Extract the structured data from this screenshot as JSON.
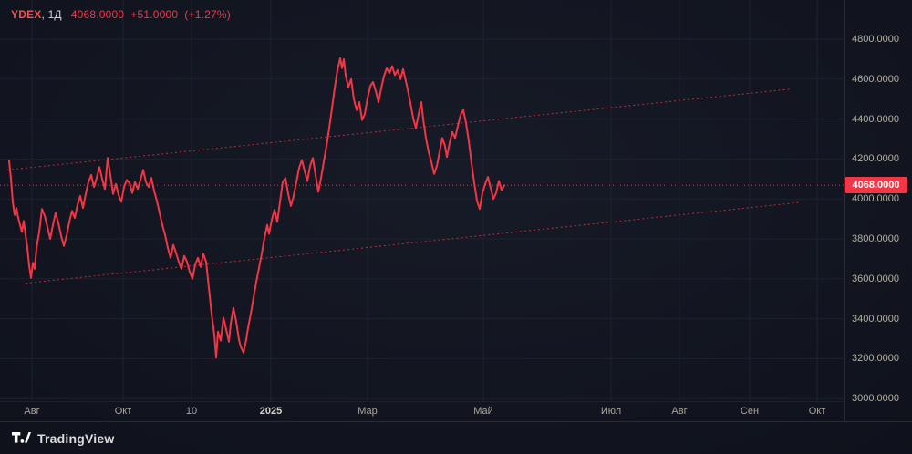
{
  "header": {
    "symbol": "YDEX",
    "separator": ", ",
    "interval": "1Д",
    "price": "4068.0000",
    "change": "+51.0000",
    "change_pct": "(+1.27%)"
  },
  "price_axis": {
    "last_price_label": "4068.0000"
  },
  "footer": {
    "brand": "TradingView"
  },
  "colors": {
    "line": "#f23645",
    "label_bg": "#f23645",
    "grid": "#1d2230",
    "axis_text": "#b3afa4"
  },
  "chart_data": {
    "type": "line",
    "title": "YDEX, 1Д",
    "xlabel": "",
    "ylabel": "",
    "ylim": [
      3000,
      4800
    ],
    "grid": true,
    "grid_color": "#1d2230",
    "trend_color": "#f23645",
    "price_line": 4068,
    "last_price": 4068,
    "y_ticks": [
      "4800.0000",
      "4600.0000",
      "4400.0000",
      "4200.0000",
      "4000.0000",
      "3800.0000",
      "3600.0000",
      "3400.0000",
      "3200.0000",
      "3000.0000"
    ],
    "x_ticks": [
      {
        "label": "Авг",
        "x": 35,
        "year": false
      },
      {
        "label": "Окт",
        "x": 135,
        "year": false
      },
      {
        "label": "10",
        "x": 210,
        "year": false
      },
      {
        "label": "2025",
        "x": 297,
        "year": true
      },
      {
        "label": "Мар",
        "x": 403,
        "year": false
      },
      {
        "label": "Май",
        "x": 530,
        "year": false
      },
      {
        "label": "Июл",
        "x": 670,
        "year": false
      },
      {
        "label": "Авг",
        "x": 745,
        "year": false
      },
      {
        "label": "Сен",
        "x": 822,
        "year": false
      },
      {
        "label": "Окт",
        "x": 896,
        "year": false
      }
    ],
    "trend_lines": [
      {
        "x1": 8,
        "p1": 4145,
        "x2": 866,
        "p2": 4550
      },
      {
        "x1": 28,
        "p1": 3578,
        "x2": 876,
        "p2": 3982
      }
    ],
    "series": [
      {
        "name": "YDEX",
        "color": "#f23645",
        "points": [
          [
            10,
            4190
          ],
          [
            12,
            4100
          ],
          [
            14,
            3985
          ],
          [
            16,
            3920
          ],
          [
            18,
            3955
          ],
          [
            20,
            3905
          ],
          [
            22,
            3870
          ],
          [
            24,
            3835
          ],
          [
            26,
            3890
          ],
          [
            28,
            3820
          ],
          [
            30,
            3755
          ],
          [
            32,
            3665
          ],
          [
            34,
            3605
          ],
          [
            36,
            3680
          ],
          [
            38,
            3650
          ],
          [
            40,
            3755
          ],
          [
            43,
            3835
          ],
          [
            46,
            3950
          ],
          [
            49,
            3915
          ],
          [
            52,
            3860
          ],
          [
            55,
            3800
          ],
          [
            58,
            3870
          ],
          [
            61,
            3930
          ],
          [
            64,
            3880
          ],
          [
            67,
            3815
          ],
          [
            70,
            3765
          ],
          [
            73,
            3815
          ],
          [
            76,
            3885
          ],
          [
            79,
            3940
          ],
          [
            82,
            3905
          ],
          [
            85,
            3970
          ],
          [
            88,
            4015
          ],
          [
            91,
            3955
          ],
          [
            94,
            4025
          ],
          [
            97,
            4085
          ],
          [
            100,
            4120
          ],
          [
            103,
            4060
          ],
          [
            106,
            4105
          ],
          [
            109,
            4160
          ],
          [
            112,
            4100
          ],
          [
            115,
            4050
          ],
          [
            118,
            4205
          ],
          [
            121,
            4120
          ],
          [
            124,
            4025
          ],
          [
            127,
            4075
          ],
          [
            130,
            4020
          ],
          [
            133,
            3985
          ],
          [
            136,
            4060
          ],
          [
            139,
            4095
          ],
          [
            142,
            4080
          ],
          [
            145,
            4030
          ],
          [
            148,
            4085
          ],
          [
            151,
            4050
          ],
          [
            154,
            4095
          ],
          [
            157,
            4145
          ],
          [
            160,
            4085
          ],
          [
            163,
            4060
          ],
          [
            166,
            4105
          ],
          [
            169,
            4040
          ],
          [
            172,
            3990
          ],
          [
            175,
            3930
          ],
          [
            178,
            3870
          ],
          [
            181,
            3820
          ],
          [
            184,
            3755
          ],
          [
            187,
            3705
          ],
          [
            190,
            3770
          ],
          [
            193,
            3730
          ],
          [
            196,
            3685
          ],
          [
            199,
            3650
          ],
          [
            202,
            3715
          ],
          [
            205,
            3685
          ],
          [
            208,
            3635
          ],
          [
            211,
            3600
          ],
          [
            214,
            3670
          ],
          [
            217,
            3705
          ],
          [
            220,
            3660
          ],
          [
            223,
            3725
          ],
          [
            226,
            3685
          ],
          [
            229,
            3555
          ],
          [
            232,
            3425
          ],
          [
            235,
            3320
          ],
          [
            237,
            3205
          ],
          [
            239,
            3335
          ],
          [
            242,
            3290
          ],
          [
            245,
            3405
          ],
          [
            248,
            3345
          ],
          [
            251,
            3285
          ],
          [
            253,
            3375
          ],
          [
            256,
            3455
          ],
          [
            259,
            3385
          ],
          [
            262,
            3295
          ],
          [
            264,
            3260
          ],
          [
            267,
            3230
          ],
          [
            270,
            3295
          ],
          [
            272,
            3355
          ],
          [
            275,
            3425
          ],
          [
            278,
            3505
          ],
          [
            281,
            3585
          ],
          [
            284,
            3655
          ],
          [
            287,
            3725
          ],
          [
            290,
            3805
          ],
          [
            293,
            3870
          ],
          [
            295,
            3825
          ],
          [
            298,
            3895
          ],
          [
            301,
            3945
          ],
          [
            304,
            3885
          ],
          [
            307,
            3985
          ],
          [
            310,
            4085
          ],
          [
            313,
            4105
          ],
          [
            316,
            4025
          ],
          [
            319,
            3965
          ],
          [
            322,
            4015
          ],
          [
            325,
            4085
          ],
          [
            328,
            4155
          ],
          [
            331,
            4195
          ],
          [
            334,
            4140
          ],
          [
            337,
            4090
          ],
          [
            340,
            4165
          ],
          [
            343,
            4205
          ],
          [
            346,
            4120
          ],
          [
            349,
            4035
          ],
          [
            352,
            4105
          ],
          [
            355,
            4185
          ],
          [
            358,
            4265
          ],
          [
            361,
            4355
          ],
          [
            364,
            4455
          ],
          [
            367,
            4555
          ],
          [
            370,
            4645
          ],
          [
            373,
            4705
          ],
          [
            375,
            4655
          ],
          [
            377,
            4700
          ],
          [
            379,
            4620
          ],
          [
            382,
            4560
          ],
          [
            385,
            4600
          ],
          [
            388,
            4500
          ],
          [
            391,
            4445
          ],
          [
            394,
            4485
          ],
          [
            397,
            4395
          ],
          [
            400,
            4425
          ],
          [
            403,
            4505
          ],
          [
            406,
            4565
          ],
          [
            409,
            4585
          ],
          [
            412,
            4540
          ],
          [
            415,
            4485
          ],
          [
            418,
            4555
          ],
          [
            421,
            4615
          ],
          [
            424,
            4655
          ],
          [
            427,
            4630
          ],
          [
            430,
            4665
          ],
          [
            433,
            4620
          ],
          [
            436,
            4645
          ],
          [
            439,
            4600
          ],
          [
            442,
            4650
          ],
          [
            444,
            4610
          ],
          [
            447,
            4550
          ],
          [
            450,
            4480
          ],
          [
            453,
            4405
          ],
          [
            456,
            4355
          ],
          [
            459,
            4425
          ],
          [
            462,
            4485
          ],
          [
            464,
            4400
          ],
          [
            467,
            4305
          ],
          [
            470,
            4235
          ],
          [
            473,
            4185
          ],
          [
            476,
            4125
          ],
          [
            479,
            4165
          ],
          [
            482,
            4235
          ],
          [
            485,
            4305
          ],
          [
            488,
            4265
          ],
          [
            490,
            4210
          ],
          [
            493,
            4280
          ],
          [
            496,
            4335
          ],
          [
            499,
            4305
          ],
          [
            502,
            4365
          ],
          [
            505,
            4420
          ],
          [
            508,
            4445
          ],
          [
            511,
            4380
          ],
          [
            514,
            4290
          ],
          [
            517,
            4180
          ],
          [
            520,
            4080
          ],
          [
            523,
            3990
          ],
          [
            526,
            3950
          ],
          [
            529,
            4030
          ],
          [
            532,
            4075
          ],
          [
            535,
            4110
          ],
          [
            538,
            4055
          ],
          [
            541,
            4000
          ],
          [
            544,
            4030
          ],
          [
            547,
            4090
          ],
          [
            550,
            4045
          ],
          [
            553,
            4068
          ]
        ]
      }
    ]
  }
}
